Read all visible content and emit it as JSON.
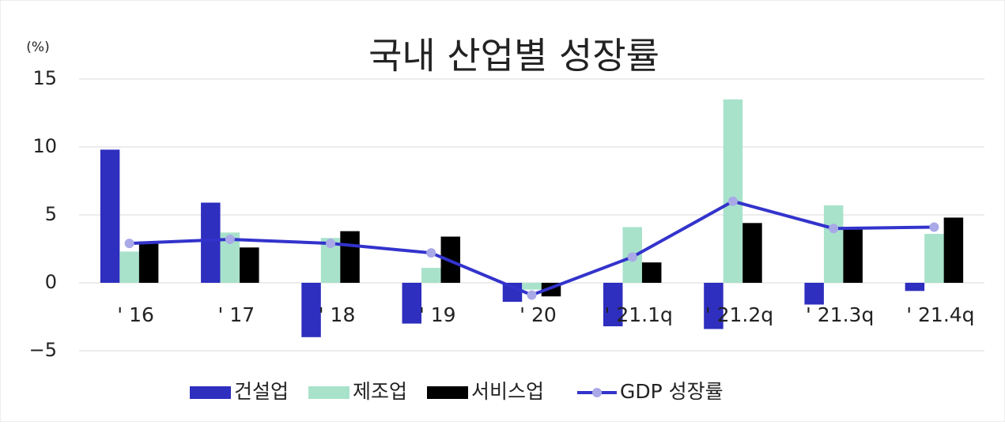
{
  "chart_data": {
    "type": "bar_line",
    "title": "국내 산업별 성장률",
    "y_unit": "(%)",
    "categories": [
      "' 16",
      "' 17",
      "' 18",
      "' 19",
      "' 20",
      "' 21.1q",
      "' 21.2q",
      "' 21.3q",
      "' 21.4q"
    ],
    "series": [
      {
        "name": "건설업",
        "type": "bar",
        "color": "#2e2ebf",
        "values": [
          9.8,
          5.9,
          -4.0,
          -3.0,
          -1.4,
          -3.2,
          -3.4,
          -1.6,
          -0.6
        ]
      },
      {
        "name": "제조업",
        "type": "bar",
        "color": "#a8e2cb",
        "values": [
          2.3,
          3.7,
          3.3,
          1.1,
          -0.5,
          4.1,
          13.5,
          5.7,
          3.6
        ]
      },
      {
        "name": "서비스업",
        "type": "bar",
        "color": "#000000",
        "values": [
          2.9,
          2.6,
          3.8,
          3.4,
          -1.0,
          1.5,
          4.4,
          4.0,
          4.8
        ]
      },
      {
        "name": "GDP 성장률",
        "type": "line",
        "color": "#3333cc",
        "marker_color": "#a9a9e8",
        "values": [
          2.9,
          3.2,
          2.9,
          2.2,
          -0.9,
          1.9,
          6.0,
          4.0,
          4.1
        ]
      }
    ],
    "ylim": [
      -5,
      15
    ],
    "yticks": [
      {
        "value": -5,
        "label": "−5"
      },
      0,
      5,
      10,
      15
    ],
    "grid": true,
    "legend": "bottom"
  }
}
